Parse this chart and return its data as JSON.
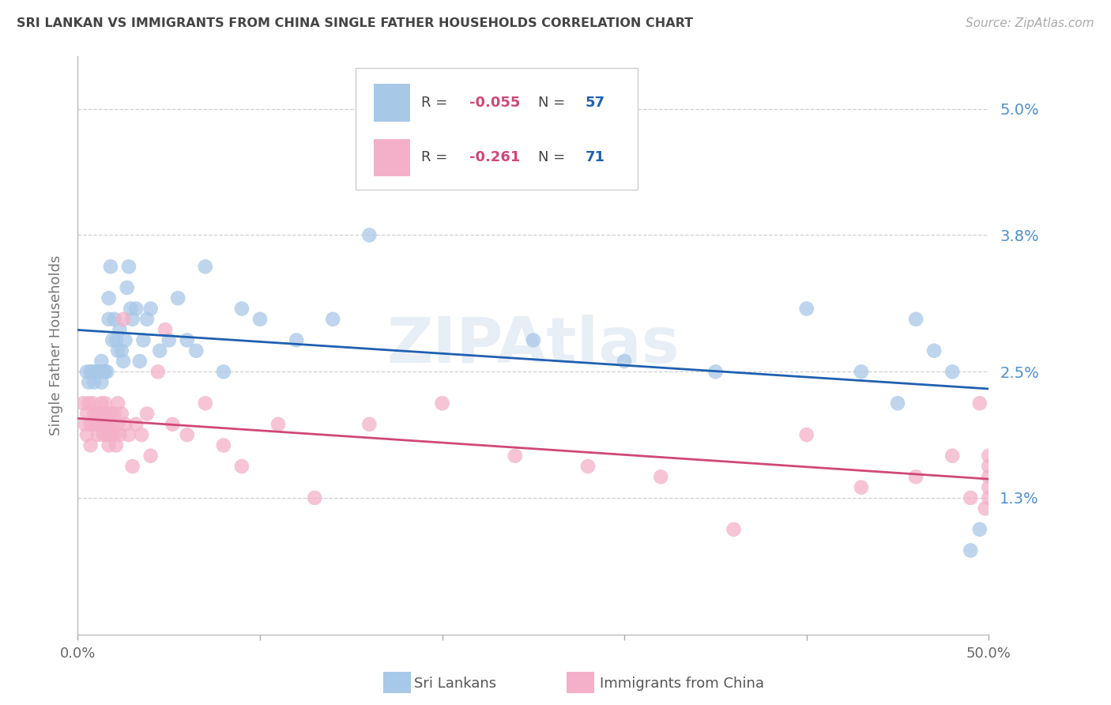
{
  "title": "SRI LANKAN VS IMMIGRANTS FROM CHINA SINGLE FATHER HOUSEHOLDS CORRELATION CHART",
  "source": "Source: ZipAtlas.com",
  "ylabel": "Single Father Households",
  "xlim": [
    0.0,
    0.5
  ],
  "ylim": [
    0.0,
    0.055
  ],
  "ytick_vals": [
    0.013,
    0.025,
    0.038,
    0.05
  ],
  "ytick_labels": [
    "1.3%",
    "2.5%",
    "3.8%",
    "5.0%"
  ],
  "xtick_vals": [
    0.0,
    0.1,
    0.2,
    0.3,
    0.4,
    0.5
  ],
  "xtick_labels": [
    "0.0%",
    "",
    "",
    "",
    "",
    "50.0%"
  ],
  "sri_color": "#a8c8e8",
  "china_color": "#f4b0c8",
  "reg_blue": "#2060b0",
  "reg_pink": "#d04878",
  "legend_R_sri": "-0.055",
  "legend_N_sri": "57",
  "legend_R_china": "-0.261",
  "legend_N_china": "71",
  "grid_color": "#d0d0d0",
  "ytick_color": "#5090d0",
  "watermark_color": "#e8eef5",
  "sri_x": [
    0.005,
    0.006,
    0.007,
    0.008,
    0.009,
    0.01,
    0.011,
    0.012,
    0.013,
    0.013,
    0.014,
    0.015,
    0.016,
    0.017,
    0.017,
    0.018,
    0.019,
    0.02,
    0.021,
    0.022,
    0.023,
    0.024,
    0.025,
    0.026,
    0.027,
    0.028,
    0.029,
    0.03,
    0.032,
    0.034,
    0.036,
    0.038,
    0.04,
    0.045,
    0.05,
    0.055,
    0.06,
    0.065,
    0.07,
    0.08,
    0.09,
    0.1,
    0.12,
    0.14,
    0.16,
    0.2,
    0.25,
    0.3,
    0.35,
    0.4,
    0.43,
    0.45,
    0.46,
    0.47,
    0.48,
    0.49,
    0.495
  ],
  "sri_y": [
    0.025,
    0.024,
    0.025,
    0.025,
    0.024,
    0.025,
    0.025,
    0.025,
    0.024,
    0.026,
    0.025,
    0.025,
    0.025,
    0.03,
    0.032,
    0.035,
    0.028,
    0.03,
    0.028,
    0.027,
    0.029,
    0.027,
    0.026,
    0.028,
    0.033,
    0.035,
    0.031,
    0.03,
    0.031,
    0.026,
    0.028,
    0.03,
    0.031,
    0.027,
    0.028,
    0.032,
    0.028,
    0.027,
    0.035,
    0.025,
    0.031,
    0.03,
    0.028,
    0.03,
    0.038,
    0.045,
    0.028,
    0.026,
    0.025,
    0.031,
    0.025,
    0.022,
    0.03,
    0.027,
    0.025,
    0.008,
    0.01
  ],
  "china_x": [
    0.003,
    0.004,
    0.005,
    0.005,
    0.006,
    0.007,
    0.007,
    0.008,
    0.008,
    0.009,
    0.01,
    0.01,
    0.011,
    0.011,
    0.012,
    0.012,
    0.013,
    0.013,
    0.014,
    0.014,
    0.015,
    0.015,
    0.016,
    0.016,
    0.017,
    0.017,
    0.018,
    0.018,
    0.019,
    0.02,
    0.02,
    0.021,
    0.022,
    0.022,
    0.023,
    0.024,
    0.025,
    0.026,
    0.028,
    0.03,
    0.032,
    0.035,
    0.038,
    0.04,
    0.044,
    0.048,
    0.052,
    0.06,
    0.07,
    0.08,
    0.09,
    0.11,
    0.13,
    0.16,
    0.2,
    0.24,
    0.28,
    0.32,
    0.36,
    0.4,
    0.43,
    0.46,
    0.48,
    0.49,
    0.495,
    0.498,
    0.5,
    0.5,
    0.5,
    0.5,
    0.5
  ],
  "china_y": [
    0.022,
    0.02,
    0.021,
    0.019,
    0.022,
    0.02,
    0.018,
    0.022,
    0.02,
    0.021,
    0.02,
    0.021,
    0.02,
    0.019,
    0.021,
    0.02,
    0.02,
    0.022,
    0.019,
    0.021,
    0.02,
    0.022,
    0.019,
    0.021,
    0.02,
    0.018,
    0.021,
    0.019,
    0.02,
    0.019,
    0.021,
    0.018,
    0.02,
    0.022,
    0.019,
    0.021,
    0.03,
    0.02,
    0.019,
    0.016,
    0.02,
    0.019,
    0.021,
    0.017,
    0.025,
    0.029,
    0.02,
    0.019,
    0.022,
    0.018,
    0.016,
    0.02,
    0.013,
    0.02,
    0.022,
    0.017,
    0.016,
    0.015,
    0.01,
    0.019,
    0.014,
    0.015,
    0.017,
    0.013,
    0.022,
    0.012,
    0.017,
    0.015,
    0.013,
    0.016,
    0.014
  ]
}
